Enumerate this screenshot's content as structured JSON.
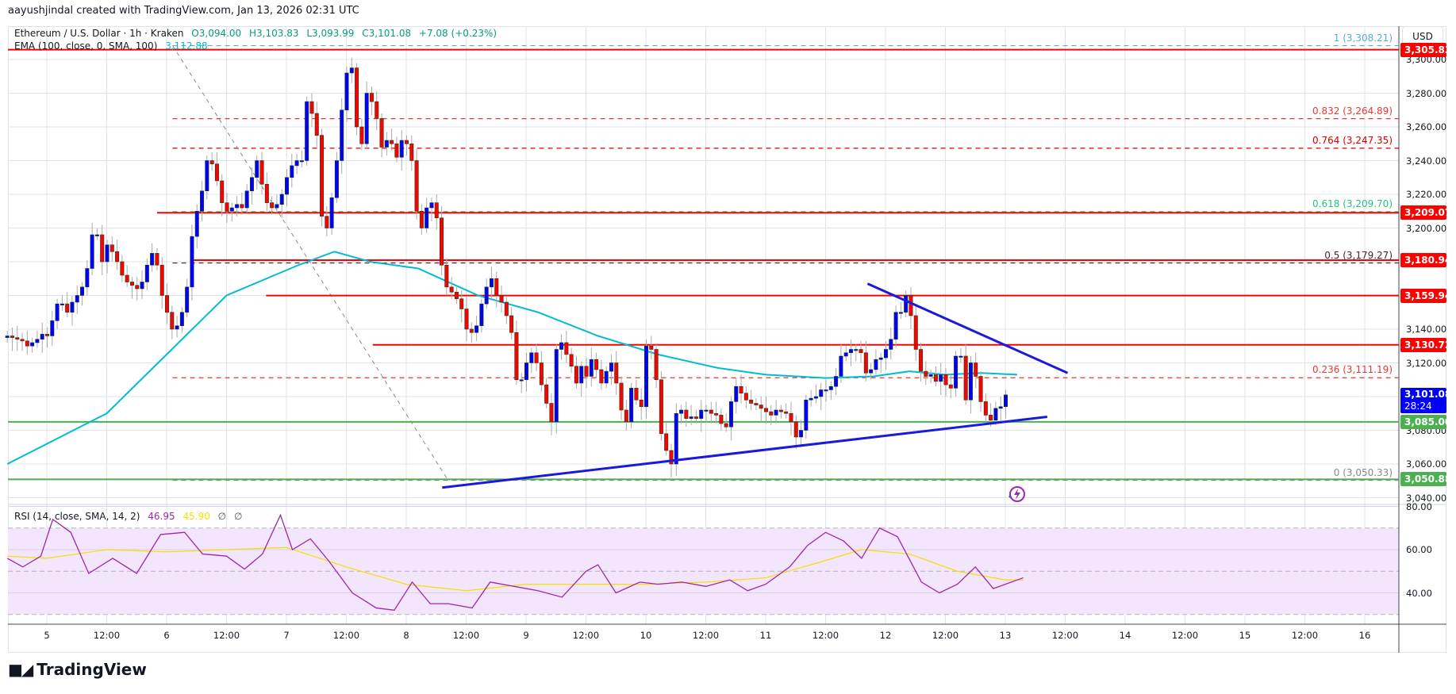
{
  "header": {
    "credit": "aayushjindal created with TradingView.com, Jan 13, 2026 02:31 UTC"
  },
  "legend": {
    "symbol": "Ethereum / U.S. Dollar · 1h · Kraken",
    "open": "O3,094.00",
    "high": "H3,103.83",
    "low": "L3,093.99",
    "close": "C3,101.08",
    "change": "+7.08 (+0.23%)",
    "ema_label": "EMA (100, close, 0, SMA, 100)",
    "ema_value": "3,112.88",
    "rsi_label": "RSI (14, close, SMA, 14, 2)",
    "rsi_value": "46.95",
    "rsi_ma_value": "45.90",
    "rsi_extra1": "∅",
    "rsi_extra2": "∅"
  },
  "price_axis": {
    "currency_button": "USD",
    "ticks": [
      "3,300.00",
      "3,280.00",
      "3,260.00",
      "3,240.00",
      "3,220.00",
      "3,200.00",
      "3,140.00",
      "3,120.00",
      "3,080.00",
      "3,060.00",
      "3,040.00"
    ],
    "tick_values": [
      3300,
      3280,
      3260,
      3240,
      3220,
      3200,
      3140,
      3120,
      3080,
      3060,
      3040
    ],
    "rsi_ticks": [
      "80.00",
      "60.00",
      "40.00"
    ],
    "tags": [
      {
        "label": "3,305.83",
        "value": 3305.83,
        "color": "#ff0000"
      },
      {
        "label": "3,209.07",
        "value": 3209.07,
        "color": "#ff0000"
      },
      {
        "label": "3,180.94",
        "value": 3180.94,
        "color": "#ff0000"
      },
      {
        "label": "3,159.94",
        "value": 3159.94,
        "color": "#ff0000"
      },
      {
        "label": "3,130.72",
        "value": 3130.72,
        "color": "#ff0000"
      },
      {
        "label": "3,085.00",
        "value": 3085.0,
        "color": "#4caf50"
      },
      {
        "label": "3,050.88",
        "value": 3050.88,
        "color": "#4caf50"
      }
    ],
    "last_price_tag": {
      "label": "3,101.08",
      "countdown": "28:24",
      "value": 3101.08,
      "color": "#0000ff"
    }
  },
  "time_axis": {
    "labels": [
      "5",
      "12:00",
      "6",
      "12:00",
      "7",
      "12:00",
      "8",
      "12:00",
      "9",
      "12:00",
      "10",
      "12:00",
      "11",
      "12:00",
      "12",
      "12:00",
      "13",
      "12:00",
      "14",
      "12:00",
      "15",
      "12:00",
      "16"
    ]
  },
  "fib_levels": [
    {
      "label": "1 (3,308.21)",
      "value": 3308.21,
      "color": "#5aa9d6"
    },
    {
      "label": "0.832 (3,264.89)",
      "value": 3264.89,
      "color": "#e53935"
    },
    {
      "label": "0.764 (3,247.35)",
      "value": 3247.35,
      "color": "#d50000"
    },
    {
      "label": "0.618 (3,209.70)",
      "value": 3209.7,
      "color": "#26c281"
    },
    {
      "label": "0.5 (3,179.27)",
      "value": 3179.27,
      "color": "#4a1c3a"
    },
    {
      "label": "0.236 (3,111.19)",
      "value": 3111.19,
      "color": "#e53935"
    },
    {
      "label": "0 (3,050.33)",
      "value": 3050.33,
      "color": "#888888"
    }
  ],
  "horizontal_lines": [
    {
      "value": 3305.83,
      "x_start_day": 4.67,
      "color": "#ff0000"
    },
    {
      "value": 3209.07,
      "x_start_day": 5.92,
      "color": "#ff0000"
    },
    {
      "value": 3180.94,
      "x_start_day": 6.2,
      "color": "#ff0000"
    },
    {
      "value": 3159.94,
      "x_start_day": 6.83,
      "color": "#ff0000"
    },
    {
      "value": 3130.72,
      "x_start_day": 7.72,
      "color": "#ff0000"
    },
    {
      "value": 3085.0,
      "x_start_day": 4.67,
      "color": "#4caf50"
    },
    {
      "value": 3050.88,
      "x_start_day": 4.67,
      "color": "#4caf50"
    }
  ],
  "trend_lines": [
    {
      "name": "support-trendline",
      "from": {
        "day": 8.3,
        "price": 3046
      },
      "to": {
        "day": 13.35,
        "price": 3088
      },
      "color": "#1a1adb"
    },
    {
      "name": "resistance-trendline",
      "from": {
        "day": 11.85,
        "price": 3167
      },
      "to": {
        "day": 13.52,
        "price": 3114
      },
      "color": "#1a1adb"
    }
  ],
  "colors": {
    "up": "#0000ff",
    "down": "#ff0000",
    "wick": "#aaaaaa",
    "ema": "#00bcd4",
    "rsi": "#9c27b0",
    "rsi_ma": "#f5e100",
    "rsi_band": "#f3e5fc",
    "grid": "#e0e3eb"
  },
  "chart_data": {
    "type": "candlestick",
    "title": "Ethereum / U.S. Dollar · 1h · Kraken",
    "xlabel": "",
    "ylabel": "USD",
    "ylim": [
      3035,
      3312
    ],
    "x_range_days": [
      4.67,
      16.6
    ],
    "grid": true,
    "close_prices_hourly_from_day_4_67": [
      3136,
      3135,
      3134,
      3133,
      3130,
      3132,
      3134,
      3137,
      3136,
      3145,
      3155,
      3155,
      3150,
      3156,
      3160,
      3165,
      3176,
      3196,
      3196,
      3180,
      3190,
      3186,
      3180,
      3172,
      3168,
      3166,
      3164,
      3168,
      3178,
      3185,
      3178,
      3160,
      3150,
      3140,
      3142,
      3150,
      3165,
      3195,
      3210,
      3222,
      3240,
      3238,
      3228,
      3215,
      3210,
      3212,
      3214,
      3212,
      3222,
      3230,
      3240,
      3226,
      3215,
      3212,
      3214,
      3220,
      3230,
      3237,
      3240,
      3240,
      3275,
      3268,
      3255,
      3207,
      3200,
      3218,
      3240,
      3270,
      3292,
      3295,
      3260,
      3250,
      3280,
      3275,
      3265,
      3248,
      3252,
      3250,
      3242,
      3252,
      3250,
      3240,
      3210,
      3200,
      3212,
      3215,
      3206,
      3178,
      3165,
      3162,
      3158,
      3152,
      3140,
      3138,
      3142,
      3155,
      3165,
      3170,
      3160,
      3156,
      3148,
      3138,
      3110,
      3110,
      3120,
      3126,
      3120,
      3107,
      3096,
      3085,
      3128,
      3132,
      3125,
      3118,
      3108,
      3118,
      3112,
      3122,
      3116,
      3108,
      3115,
      3120,
      3108,
      3092,
      3085,
      3105,
      3098,
      3094,
      3130,
      3128,
      3110,
      3078,
      3068,
      3060,
      3090,
      3092,
      3087,
      3088,
      3087,
      3092,
      3092,
      3090,
      3089,
      3084,
      3082,
      3097,
      3106,
      3102,
      3098,
      3096,
      3095,
      3093,
      3091,
      3089,
      3092,
      3091,
      3090,
      3085,
      3076,
      3080,
      3098,
      3099,
      3100,
      3104,
      3104,
      3106,
      3112,
      3124,
      3126,
      3128,
      3128,
      3126,
      3114,
      3116,
      3122,
      3123,
      3128,
      3134,
      3150,
      3150,
      3160,
      3148,
      3128,
      3115,
      3112,
      3113,
      3109,
      3113,
      3107,
      3105,
      3124,
      3124,
      3098,
      3120,
      3112,
      3097,
      3089,
      3086,
      3093,
      3094,
      3101
    ],
    "ema_100_approx": [
      {
        "day": 4.67,
        "price": 3060
      },
      {
        "day": 5.5,
        "price": 3090
      },
      {
        "day": 6.0,
        "price": 3125
      },
      {
        "day": 6.5,
        "price": 3160
      },
      {
        "day": 6.9,
        "price": 3172
      },
      {
        "day": 7.1,
        "price": 3178
      },
      {
        "day": 7.4,
        "price": 3186
      },
      {
        "day": 7.7,
        "price": 3180
      },
      {
        "day": 8.1,
        "price": 3176
      },
      {
        "day": 8.6,
        "price": 3160
      },
      {
        "day": 9.1,
        "price": 3150
      },
      {
        "day": 9.6,
        "price": 3136
      },
      {
        "day": 10.1,
        "price": 3125
      },
      {
        "day": 10.6,
        "price": 3117
      },
      {
        "day": 11.0,
        "price": 3113
      },
      {
        "day": 11.5,
        "price": 3111
      },
      {
        "day": 11.9,
        "price": 3112
      },
      {
        "day": 12.2,
        "price": 3115
      },
      {
        "day": 12.5,
        "price": 3113
      },
      {
        "day": 12.8,
        "price": 3114
      },
      {
        "day": 13.1,
        "price": 3113
      }
    ],
    "rsi_14_approx": [
      {
        "day": 4.67,
        "value": 56
      },
      {
        "day": 4.8,
        "value": 52
      },
      {
        "day": 4.95,
        "value": 57
      },
      {
        "day": 5.05,
        "value": 74
      },
      {
        "day": 5.2,
        "value": 68
      },
      {
        "day": 5.35,
        "value": 49
      },
      {
        "day": 5.55,
        "value": 56
      },
      {
        "day": 5.75,
        "value": 49
      },
      {
        "day": 5.95,
        "value": 67
      },
      {
        "day": 6.15,
        "value": 68
      },
      {
        "day": 6.3,
        "value": 58
      },
      {
        "day": 6.5,
        "value": 57
      },
      {
        "day": 6.65,
        "value": 51
      },
      {
        "day": 6.8,
        "value": 58
      },
      {
        "day": 6.95,
        "value": 76
      },
      {
        "day": 7.05,
        "value": 60
      },
      {
        "day": 7.2,
        "value": 65
      },
      {
        "day": 7.35,
        "value": 55
      },
      {
        "day": 7.55,
        "value": 40
      },
      {
        "day": 7.75,
        "value": 33
      },
      {
        "day": 7.9,
        "value": 32
      },
      {
        "day": 8.05,
        "value": 45
      },
      {
        "day": 8.2,
        "value": 35
      },
      {
        "day": 8.35,
        "value": 35
      },
      {
        "day": 8.55,
        "value": 33
      },
      {
        "day": 8.7,
        "value": 45
      },
      {
        "day": 8.9,
        "value": 43
      },
      {
        "day": 9.1,
        "value": 41
      },
      {
        "day": 9.3,
        "value": 38
      },
      {
        "day": 9.5,
        "value": 50
      },
      {
        "day": 9.6,
        "value": 53
      },
      {
        "day": 9.75,
        "value": 40
      },
      {
        "day": 9.95,
        "value": 45
      },
      {
        "day": 10.1,
        "value": 44
      },
      {
        "day": 10.3,
        "value": 45
      },
      {
        "day": 10.5,
        "value": 43
      },
      {
        "day": 10.7,
        "value": 46
      },
      {
        "day": 10.85,
        "value": 41
      },
      {
        "day": 11.0,
        "value": 44
      },
      {
        "day": 11.2,
        "value": 52
      },
      {
        "day": 11.35,
        "value": 62
      },
      {
        "day": 11.5,
        "value": 68
      },
      {
        "day": 11.65,
        "value": 64
      },
      {
        "day": 11.8,
        "value": 56
      },
      {
        "day": 11.95,
        "value": 70
      },
      {
        "day": 12.1,
        "value": 66
      },
      {
        "day": 12.3,
        "value": 45
      },
      {
        "day": 12.45,
        "value": 40
      },
      {
        "day": 12.6,
        "value": 44
      },
      {
        "day": 12.75,
        "value": 52
      },
      {
        "day": 12.9,
        "value": 42
      },
      {
        "day": 13.0,
        "value": 44
      },
      {
        "day": 13.15,
        "value": 47
      }
    ],
    "rsi_ma_approx": [
      {
        "day": 4.67,
        "value": 57
      },
      {
        "day": 5.0,
        "value": 56
      },
      {
        "day": 5.5,
        "value": 60
      },
      {
        "day": 6.0,
        "value": 59
      },
      {
        "day": 6.5,
        "value": 60
      },
      {
        "day": 7.0,
        "value": 61
      },
      {
        "day": 7.5,
        "value": 52
      },
      {
        "day": 8.0,
        "value": 44
      },
      {
        "day": 8.5,
        "value": 41
      },
      {
        "day": 9.0,
        "value": 44
      },
      {
        "day": 9.5,
        "value": 44
      },
      {
        "day": 10.0,
        "value": 44
      },
      {
        "day": 10.5,
        "value": 45
      },
      {
        "day": 11.0,
        "value": 47
      },
      {
        "day": 11.5,
        "value": 55
      },
      {
        "day": 11.8,
        "value": 60
      },
      {
        "day": 12.2,
        "value": 58
      },
      {
        "day": 12.6,
        "value": 50
      },
      {
        "day": 13.0,
        "value": 46
      },
      {
        "day": 13.15,
        "value": 46
      }
    ],
    "rsi_bands": {
      "upper": 70,
      "middle": 50,
      "lower": 30
    }
  }
}
